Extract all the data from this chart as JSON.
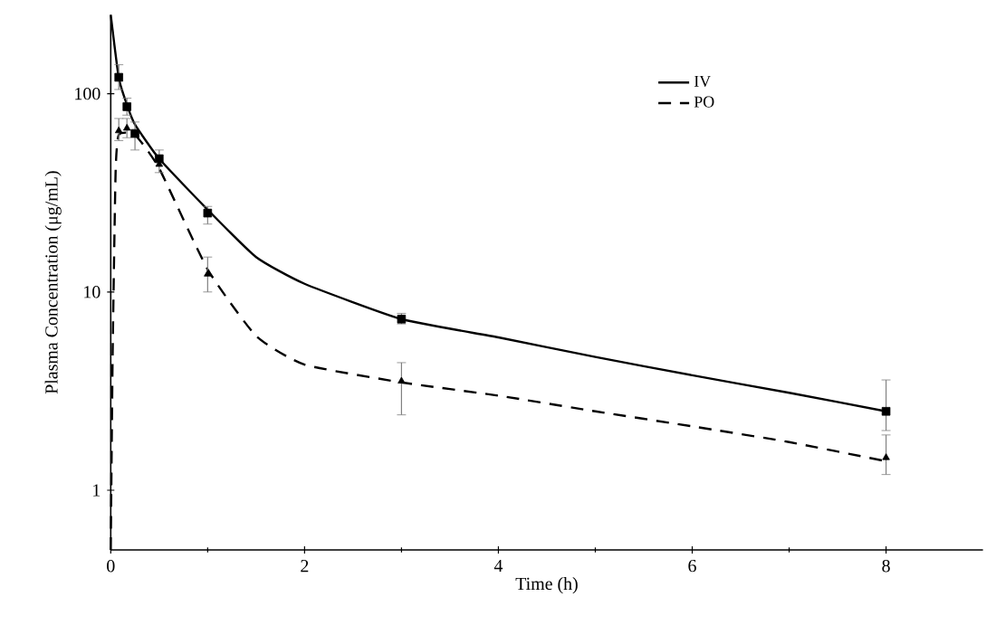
{
  "chart_data": {
    "type": "line",
    "xlabel": "Time (h)",
    "ylabel": "Plasma Concentration  (μg/mL)",
    "xlim": [
      0,
      9
    ],
    "ylim": [
      0.5,
      250
    ],
    "xticks": [
      0,
      2,
      4,
      6,
      8
    ],
    "yticks": [
      1,
      10,
      100
    ],
    "log": "y",
    "legend": "top right",
    "series": [
      {
        "name": "IV",
        "line_style": "solid",
        "marker": "none",
        "color": "#000000",
        "x": [
          0,
          0.083,
          0.167,
          0.25,
          0.5,
          1,
          1.5,
          2,
          3,
          4,
          5,
          6,
          7,
          8
        ],
        "values": [
          250,
          120,
          88,
          70,
          47,
          26,
          15,
          11,
          7.3,
          5.9,
          4.7,
          3.8,
          3.1,
          2.5
        ]
      },
      {
        "name": "PO",
        "line_style": "dashed",
        "marker": "none",
        "color": "#000000",
        "x": [
          0,
          0.02,
          0.05,
          0.083,
          0.25,
          0.5,
          1,
          1.5,
          2,
          3,
          4,
          5,
          6,
          7,
          8
        ],
        "values": [
          0.5,
          5,
          40,
          62,
          62,
          42,
          13,
          6,
          4.3,
          3.5,
          3.0,
          2.5,
          2.1,
          1.75,
          1.4
        ]
      },
      {
        "type": "scatter",
        "marker": "square",
        "color": "#000000",
        "x": [
          0.083,
          0.167,
          0.25,
          0.5,
          1,
          3,
          8
        ],
        "values": [
          121,
          86,
          63,
          47,
          25,
          7.3,
          2.5
        ],
        "errors": [
          [
            105,
            140
          ],
          [
            78,
            95
          ],
          [
            52,
            72
          ],
          null,
          [
            22,
            27
          ],
          [
            6.9,
            7.8
          ],
          [
            2.0,
            3.6
          ]
        ]
      },
      {
        "type": "scatter",
        "marker": "triangle",
        "color": "#000000",
        "x": [
          0.083,
          0.167,
          0.25,
          0.5,
          1,
          3,
          8
        ],
        "values": [
          65,
          67,
          null,
          44,
          12.3,
          3.55,
          1.46
        ],
        "errors": [
          [
            58,
            75
          ],
          [
            60,
            75
          ],
          null,
          [
            40,
            52
          ],
          [
            10,
            15
          ],
          [
            2.4,
            4.4
          ],
          [
            1.2,
            1.9
          ]
        ]
      }
    ]
  }
}
